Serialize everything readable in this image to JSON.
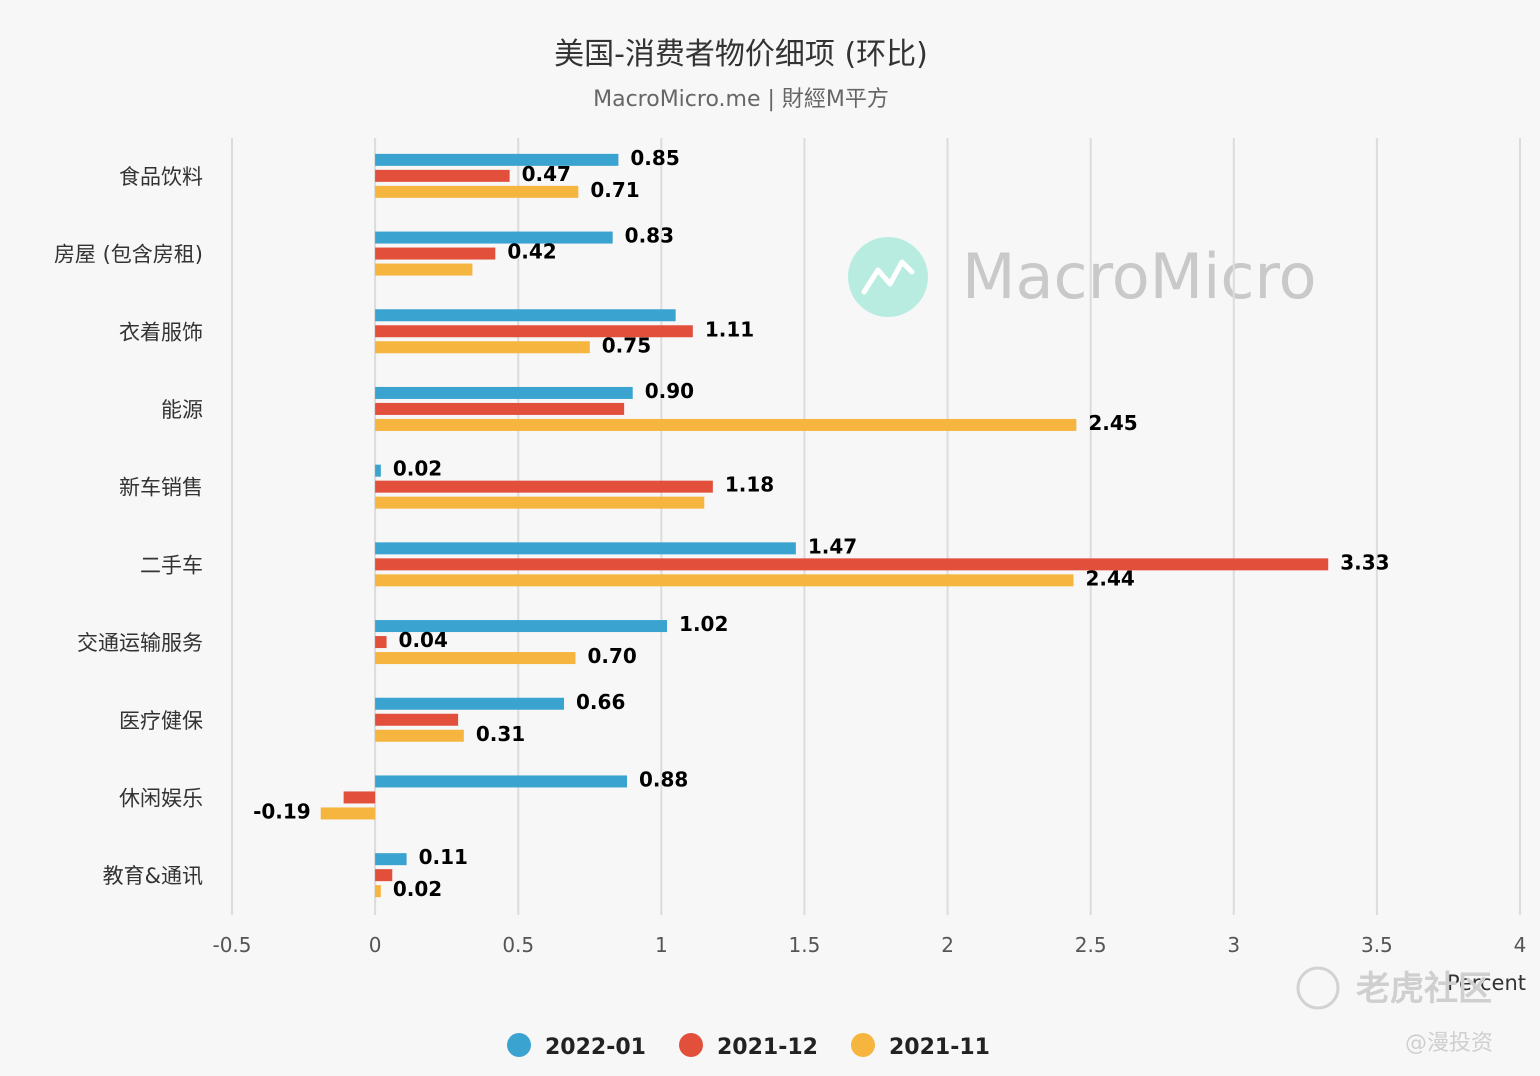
{
  "chart_data": {
    "type": "bar",
    "orientation": "horizontal",
    "title": "美国-消费者物价细项 (环比)",
    "subtitle": "MacroMicro.me | 財經M平方",
    "xlabel": "Percent",
    "xlim": [
      -0.5,
      4
    ],
    "xticks": [
      "-0.5",
      "0",
      "0.5",
      "1",
      "1.5",
      "2",
      "2.5",
      "3",
      "3.5",
      "4"
    ],
    "xtick_values": [
      -0.5,
      0,
      0.5,
      1,
      1.5,
      2,
      2.5,
      3,
      3.5,
      4
    ],
    "grid": true,
    "legend_position": "bottom",
    "categories": [
      "食品饮料",
      "房屋 (包含房租)",
      "衣着服饰",
      "能源",
      "新车销售",
      "二手车",
      "交通运输服务",
      "医疗健保",
      "休闲娱乐",
      "教育&通讯"
    ],
    "series": [
      {
        "name": "2022-01",
        "color": "#3ba3d0",
        "values": [
          0.85,
          0.83,
          1.05,
          0.9,
          0.02,
          1.47,
          1.02,
          0.66,
          0.88,
          0.11
        ],
        "labels": [
          "0.85",
          "0.83",
          "",
          "0.90",
          "0.02",
          "1.47",
          "1.02",
          "0.66",
          "0.88",
          "0.11"
        ]
      },
      {
        "name": "2021-12",
        "color": "#e2503c",
        "values": [
          0.47,
          0.42,
          1.11,
          0.87,
          1.18,
          3.33,
          0.04,
          0.29,
          -0.11,
          0.06
        ],
        "labels": [
          "0.47",
          "0.42",
          "1.11",
          "",
          "1.18",
          "3.33",
          "0.04",
          "",
          "",
          ""
        ]
      },
      {
        "name": "2021-11",
        "color": "#f5b53f",
        "values": [
          0.71,
          0.34,
          0.75,
          2.45,
          1.15,
          2.44,
          0.7,
          0.31,
          -0.19,
          0.02
        ],
        "labels": [
          "0.71",
          "",
          "0.75",
          "2.45",
          "",
          "2.44",
          "0.70",
          "0.31",
          "-0.19",
          "0.02"
        ]
      }
    ]
  },
  "watermark": {
    "brand_text": "MacroMicro",
    "brand_color": "#b8ece0",
    "corner_text": "老虎社区",
    "corner_sub": "@漫投资"
  }
}
